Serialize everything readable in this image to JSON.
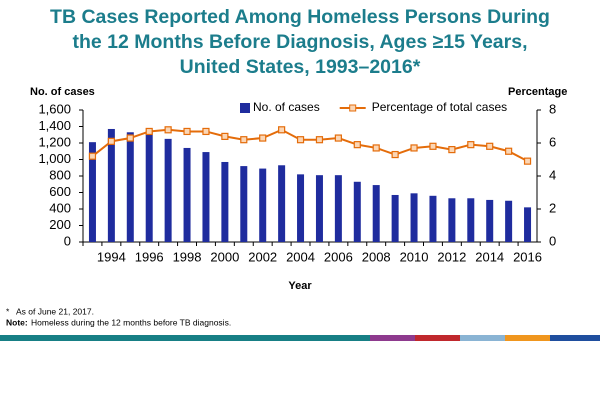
{
  "chart_data": {
    "type": "bar_line",
    "title": [
      "TB Cases Reported Among Homeless Persons During",
      "the 12 Months Before Diagnosis, Ages ≥15 Years,",
      "United States, 1993–2016*"
    ],
    "ylabel": "No. of cases",
    "y2label": "Percentage",
    "xlabel": "Year",
    "categories": [
      null,
      "1994",
      null,
      "1996",
      null,
      "1998",
      null,
      "2000",
      null,
      "2002",
      null,
      "2004",
      null,
      "2006",
      null,
      "2008",
      null,
      "2010",
      null,
      "2012",
      null,
      "2014",
      null,
      "2016"
    ],
    "series": [
      {
        "name": "No. of cases",
        "type": "bar",
        "color": "#1f2c9e",
        "values": [
          1210,
          1370,
          1330,
          1340,
          1250,
          1140,
          1090,
          970,
          920,
          890,
          930,
          820,
          810,
          810,
          730,
          690,
          570,
          590,
          560,
          530,
          530,
          510,
          500,
          420
        ]
      },
      {
        "name": "Percentage of total cases",
        "type": "line",
        "axis": "y2",
        "color": "#e46c0a",
        "values": [
          5.2,
          6.1,
          6.3,
          6.7,
          6.8,
          6.7,
          6.7,
          6.4,
          6.2,
          6.3,
          6.8,
          6.2,
          6.2,
          6.3,
          5.9,
          5.7,
          5.3,
          5.7,
          5.8,
          5.6,
          5.9,
          5.8,
          5.5,
          4.9
        ]
      }
    ],
    "ylim": [
      0,
      1600
    ],
    "yticks": [
      0,
      200,
      400,
      600,
      800,
      {
        "value": 1000,
        "label": "1,000"
      },
      {
        "value": 1200,
        "label": "1,200"
      },
      {
        "value": 1400,
        "label": "1,400"
      },
      {
        "value": 1600,
        "label": "1,600"
      }
    ],
    "y2lim": [
      0,
      8
    ],
    "y2ticks": [
      0,
      2,
      4,
      6,
      8
    ],
    "grid": false,
    "legend": "top",
    "footnote": {
      "marker": "*",
      "text": "As of June 21, 2017."
    },
    "note": {
      "label": "Note:",
      "text": "Homeless during the 12 months before TB diagnosis."
    }
  }
}
